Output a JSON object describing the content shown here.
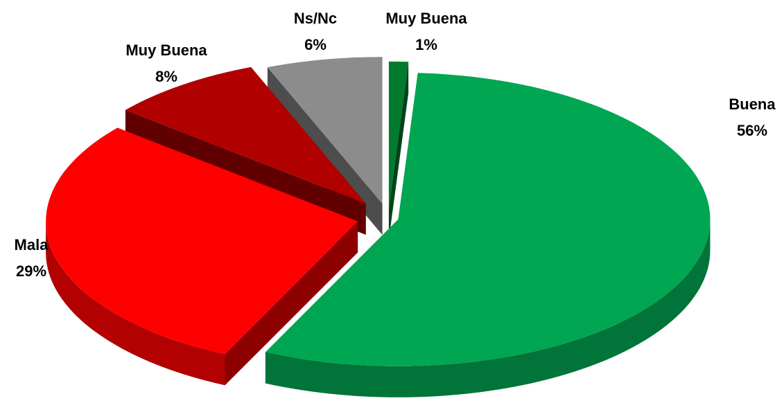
{
  "chart_data": {
    "type": "pie",
    "categories": [
      "Muy Buena",
      "Buena",
      "Mala",
      "Muy Buena",
      "Ns/Nc"
    ],
    "values": [
      1,
      56,
      29,
      8,
      6
    ],
    "value_labels": [
      "1%",
      "56%",
      "29%",
      "8%",
      "6%"
    ],
    "colors": [
      "#007a2e",
      "#00a651",
      "#ff0000",
      "#b00000",
      "#8c8c8c"
    ]
  }
}
